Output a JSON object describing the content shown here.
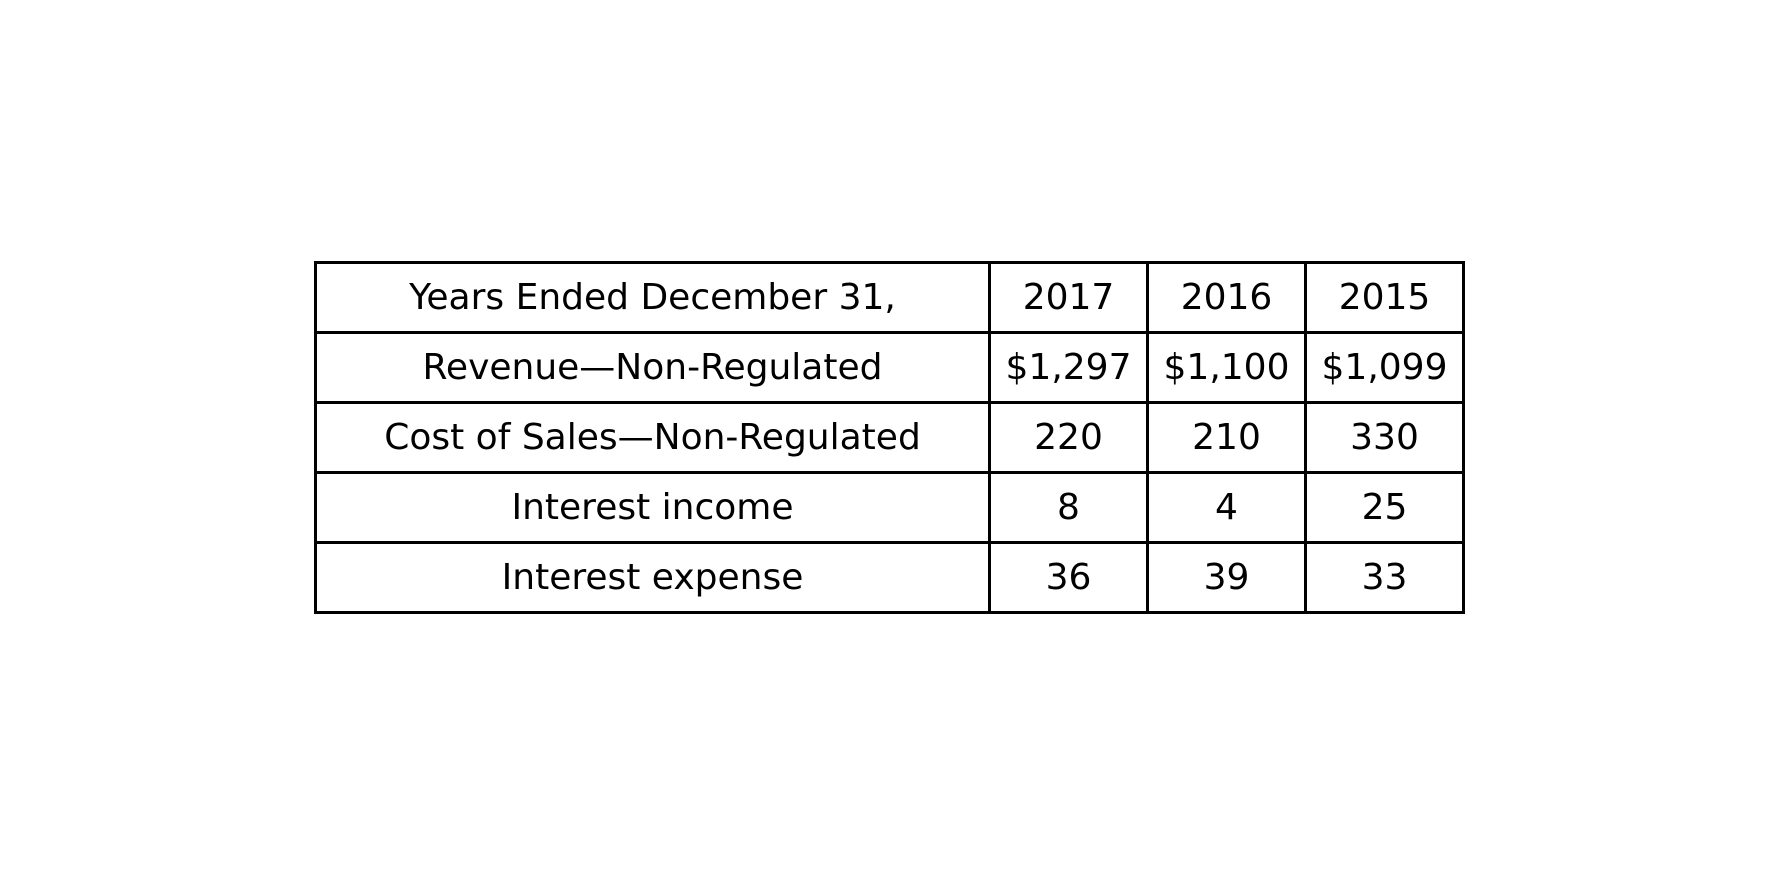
{
  "table": {
    "header": {
      "label": "Years Ended December 31,",
      "years": [
        "2017",
        "2016",
        "2015"
      ]
    },
    "rows": [
      {
        "label": "Revenue—Non-Regulated",
        "values": [
          "$1,297",
          "$1,100",
          "$1,099"
        ]
      },
      {
        "label": "Cost of Sales—Non-Regulated",
        "values": [
          "220",
          "210",
          "330"
        ]
      },
      {
        "label": "Interest income",
        "values": [
          "8",
          "4",
          "25"
        ]
      },
      {
        "label": "Interest expense",
        "values": [
          "36",
          "39",
          "33"
        ]
      }
    ]
  }
}
